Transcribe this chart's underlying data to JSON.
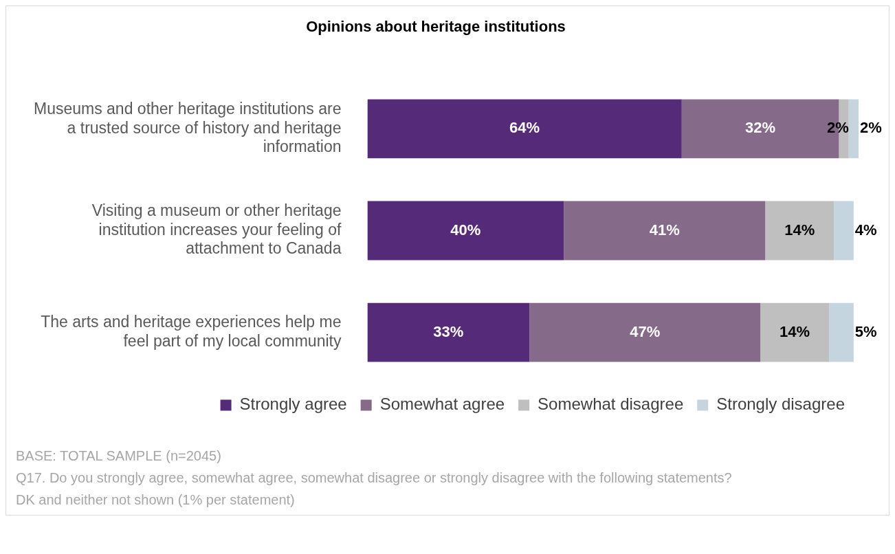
{
  "chart_data": {
    "type": "bar",
    "orientation": "horizontal",
    "stacked": true,
    "title": "Opinions about heritage institutions",
    "categories": [
      "Museums and other heritage institutions are a trusted source of history and heritage information",
      "Visiting a museum or other heritage institution increases your feeling of attachment to Canada",
      "The arts and heritage experiences help me feel part of my local community"
    ],
    "series": [
      {
        "name": "Strongly agree",
        "color": "#552a78",
        "values": [
          64,
          40,
          33
        ],
        "value_labels": [
          "64%",
          "40%",
          "33%"
        ]
      },
      {
        "name": "Somewhat agree",
        "color": "#866a8a",
        "values": [
          32,
          41,
          47
        ],
        "value_labels": [
          "32%",
          "41%",
          "47%"
        ]
      },
      {
        "name": "Somewhat disagree",
        "color": "#bfbfbf",
        "values": [
          2,
          14,
          14
        ],
        "value_labels": [
          "2%",
          "14%",
          "14%"
        ]
      },
      {
        "name": "Strongly disagree",
        "color": "#c5d5e0",
        "values": [
          2,
          4,
          5
        ],
        "value_labels": [
          "2%",
          "4%",
          "5%"
        ]
      }
    ],
    "legend": "bottom",
    "annotations": [
      "BASE: TOTAL SAMPLE (n=2045)",
      "Q17. Do you strongly agree, somewhat agree, somewhat disagree or strongly disagree with the following statements?",
      "DK and neither not shown (1% per statement)"
    ]
  }
}
